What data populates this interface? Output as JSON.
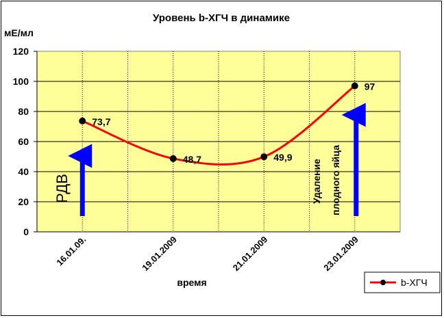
{
  "chart_data": {
    "type": "line",
    "title": "Уровень b-ХГЧ в динамике",
    "ylabel": "мЕ/мл",
    "xlabel": "время",
    "categories": [
      "16.01.09.",
      "19.01.2009",
      "21.01.2009",
      "23.01.2009"
    ],
    "series": [
      {
        "name": "b-ХГЧ",
        "values": [
          73.7,
          48.7,
          49.9,
          97
        ],
        "color": "#ff0000"
      }
    ],
    "data_labels": [
      "73,7",
      "48,7",
      "49,9",
      "97"
    ],
    "y_ticks": [
      "0",
      "20",
      "40",
      "60",
      "80",
      "100",
      "120"
    ],
    "ylim": [
      0,
      120
    ],
    "grid": true,
    "plot_background": "#ffff99",
    "smooth": true,
    "legend": {
      "position": "bottom-right"
    },
    "annotations": [
      {
        "text": "РДВ",
        "arrow_color": "#0000ff"
      },
      {
        "text_lines": [
          "Удаление",
          "плодного яйца"
        ],
        "arrow_color": "#0000ff"
      }
    ]
  }
}
